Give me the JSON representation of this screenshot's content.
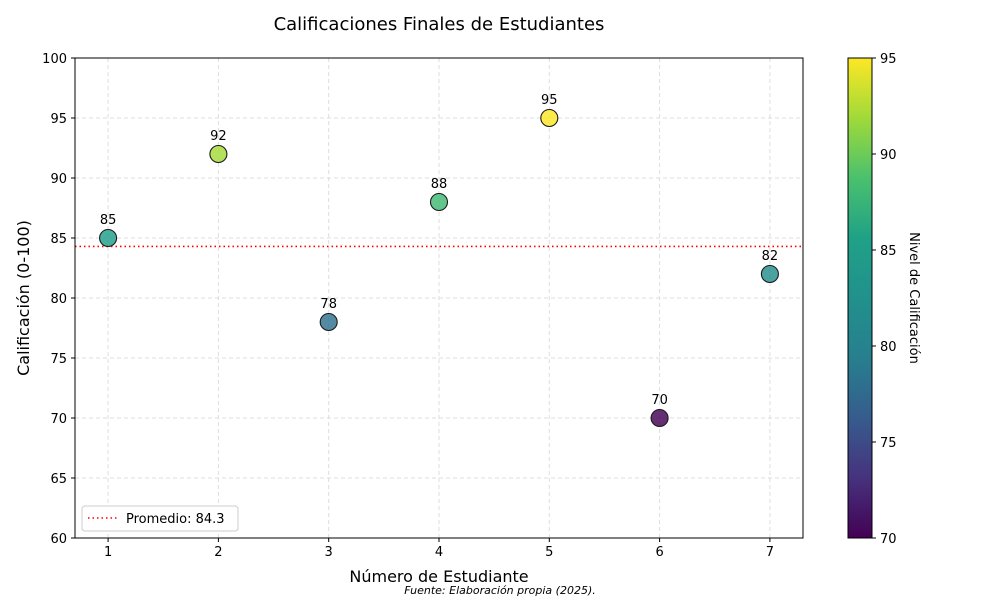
{
  "chart_data": {
    "type": "scatter",
    "title": "Calificaciones Finales de Estudiantes",
    "xlabel": "Número de Estudiante",
    "ylabel": "Calificación (0-100)",
    "x": [
      1,
      2,
      3,
      4,
      5,
      6,
      7
    ],
    "y": [
      85,
      92,
      78,
      88,
      95,
      70,
      82
    ],
    "point_labels": [
      "85",
      "92",
      "78",
      "88",
      "95",
      "70",
      "82"
    ],
    "xlim": [
      0.7,
      7.3
    ],
    "ylim": [
      60,
      100
    ],
    "xticks": [
      1,
      2,
      3,
      4,
      5,
      6,
      7
    ],
    "yticks": [
      60,
      65,
      70,
      75,
      80,
      85,
      90,
      95,
      100
    ],
    "grid": true,
    "average_line": {
      "value": 84.3,
      "label": "Promedio: 84.3",
      "color": "#ff0000",
      "style": "dotted"
    },
    "legend_position": "lower-left",
    "colormap": "viridis",
    "colorbar": {
      "label": "Nivel de Calificación",
      "range": [
        70,
        95
      ],
      "ticks": [
        70,
        75,
        80,
        85,
        90,
        95
      ]
    },
    "source_note": "Fuente: Elaboración propia (2025)."
  }
}
